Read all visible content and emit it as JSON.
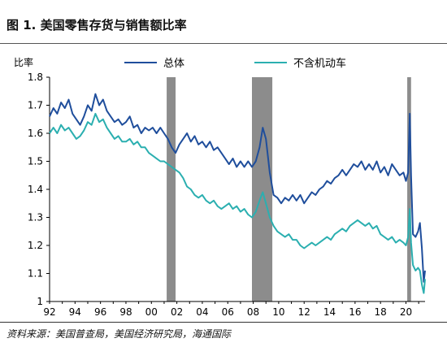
{
  "title": "图 1. 美国零售存货与销售额比率",
  "source": "资料来源：美国普查局，美国经济研究局，海通国际",
  "chart_data": {
    "type": "line",
    "ylabel": "比率",
    "xlim": [
      1992,
      2021.5
    ],
    "ylim": [
      1.0,
      1.8
    ],
    "yticks": [
      "1",
      "1.1",
      "1.2",
      "1.3",
      "1.4",
      "1.5",
      "1.6",
      "1.7",
      "1.8"
    ],
    "xticks": [
      "92",
      "94",
      "96",
      "98",
      "00",
      "02",
      "04",
      "06",
      "08",
      "10",
      "12",
      "14",
      "16",
      "18",
      "20"
    ],
    "legend_position": "top",
    "recessions": [
      [
        2001.2,
        2001.9
      ],
      [
        2007.9,
        2009.5
      ],
      [
        2020.1,
        2020.4
      ]
    ],
    "series": [
      {
        "name": "总体",
        "color": "#1f4e9c",
        "points": [
          [
            1992.0,
            1.66
          ],
          [
            1992.3,
            1.69
          ],
          [
            1992.6,
            1.67
          ],
          [
            1992.9,
            1.71
          ],
          [
            1993.2,
            1.69
          ],
          [
            1993.5,
            1.72
          ],
          [
            1993.8,
            1.67
          ],
          [
            1994.1,
            1.65
          ],
          [
            1994.4,
            1.63
          ],
          [
            1994.7,
            1.66
          ],
          [
            1995.0,
            1.7
          ],
          [
            1995.3,
            1.68
          ],
          [
            1995.6,
            1.74
          ],
          [
            1995.9,
            1.7
          ],
          [
            1996.2,
            1.72
          ],
          [
            1996.5,
            1.68
          ],
          [
            1996.8,
            1.66
          ],
          [
            1997.1,
            1.64
          ],
          [
            1997.4,
            1.65
          ],
          [
            1997.7,
            1.63
          ],
          [
            1998.0,
            1.64
          ],
          [
            1998.3,
            1.66
          ],
          [
            1998.6,
            1.62
          ],
          [
            1998.9,
            1.63
          ],
          [
            1999.2,
            1.6
          ],
          [
            1999.5,
            1.62
          ],
          [
            1999.8,
            1.61
          ],
          [
            2000.1,
            1.62
          ],
          [
            2000.4,
            1.6
          ],
          [
            2000.7,
            1.62
          ],
          [
            2001.0,
            1.6
          ],
          [
            2001.3,
            1.58
          ],
          [
            2001.6,
            1.55
          ],
          [
            2001.9,
            1.53
          ],
          [
            2002.2,
            1.56
          ],
          [
            2002.5,
            1.58
          ],
          [
            2002.8,
            1.6
          ],
          [
            2003.1,
            1.57
          ],
          [
            2003.4,
            1.59
          ],
          [
            2003.7,
            1.56
          ],
          [
            2004.0,
            1.57
          ],
          [
            2004.3,
            1.55
          ],
          [
            2004.6,
            1.57
          ],
          [
            2004.9,
            1.54
          ],
          [
            2005.2,
            1.55
          ],
          [
            2005.5,
            1.53
          ],
          [
            2005.8,
            1.51
          ],
          [
            2006.1,
            1.49
          ],
          [
            2006.4,
            1.51
          ],
          [
            2006.7,
            1.48
          ],
          [
            2007.0,
            1.5
          ],
          [
            2007.3,
            1.48
          ],
          [
            2007.6,
            1.5
          ],
          [
            2007.9,
            1.48
          ],
          [
            2008.2,
            1.5
          ],
          [
            2008.5,
            1.55
          ],
          [
            2008.75,
            1.62
          ],
          [
            2009.0,
            1.58
          ],
          [
            2009.3,
            1.46
          ],
          [
            2009.6,
            1.38
          ],
          [
            2009.9,
            1.37
          ],
          [
            2010.2,
            1.35
          ],
          [
            2010.5,
            1.37
          ],
          [
            2010.8,
            1.36
          ],
          [
            2011.1,
            1.38
          ],
          [
            2011.4,
            1.36
          ],
          [
            2011.7,
            1.38
          ],
          [
            2012.0,
            1.35
          ],
          [
            2012.3,
            1.37
          ],
          [
            2012.6,
            1.39
          ],
          [
            2012.9,
            1.38
          ],
          [
            2013.2,
            1.4
          ],
          [
            2013.5,
            1.41
          ],
          [
            2013.8,
            1.43
          ],
          [
            2014.1,
            1.42
          ],
          [
            2014.4,
            1.44
          ],
          [
            2014.7,
            1.45
          ],
          [
            2015.0,
            1.47
          ],
          [
            2015.3,
            1.45
          ],
          [
            2015.6,
            1.47
          ],
          [
            2015.9,
            1.49
          ],
          [
            2016.2,
            1.48
          ],
          [
            2016.5,
            1.5
          ],
          [
            2016.8,
            1.47
          ],
          [
            2017.1,
            1.49
          ],
          [
            2017.4,
            1.47
          ],
          [
            2017.7,
            1.5
          ],
          [
            2018.0,
            1.46
          ],
          [
            2018.3,
            1.48
          ],
          [
            2018.6,
            1.45
          ],
          [
            2018.9,
            1.49
          ],
          [
            2019.2,
            1.47
          ],
          [
            2019.5,
            1.45
          ],
          [
            2019.8,
            1.46
          ],
          [
            2020.0,
            1.43
          ],
          [
            2020.17,
            1.46
          ],
          [
            2020.3,
            1.67
          ],
          [
            2020.4,
            1.45
          ],
          [
            2020.55,
            1.24
          ],
          [
            2020.75,
            1.23
          ],
          [
            2020.95,
            1.25
          ],
          [
            2021.1,
            1.28
          ],
          [
            2021.25,
            1.19
          ],
          [
            2021.4,
            1.07
          ],
          [
            2021.5,
            1.11
          ]
        ]
      },
      {
        "name": "不含机动车",
        "color": "#2bafb0",
        "points": [
          [
            1992.0,
            1.6
          ],
          [
            1992.3,
            1.62
          ],
          [
            1992.6,
            1.6
          ],
          [
            1992.9,
            1.63
          ],
          [
            1993.2,
            1.61
          ],
          [
            1993.5,
            1.62
          ],
          [
            1993.8,
            1.6
          ],
          [
            1994.1,
            1.58
          ],
          [
            1994.4,
            1.59
          ],
          [
            1994.7,
            1.61
          ],
          [
            1995.0,
            1.64
          ],
          [
            1995.3,
            1.63
          ],
          [
            1995.6,
            1.67
          ],
          [
            1995.9,
            1.64
          ],
          [
            1996.2,
            1.65
          ],
          [
            1996.5,
            1.62
          ],
          [
            1996.8,
            1.6
          ],
          [
            1997.1,
            1.58
          ],
          [
            1997.4,
            1.59
          ],
          [
            1997.7,
            1.57
          ],
          [
            1998.0,
            1.57
          ],
          [
            1998.3,
            1.58
          ],
          [
            1998.6,
            1.56
          ],
          [
            1998.9,
            1.57
          ],
          [
            1999.2,
            1.55
          ],
          [
            1999.5,
            1.55
          ],
          [
            1999.8,
            1.53
          ],
          [
            2000.1,
            1.52
          ],
          [
            2000.4,
            1.51
          ],
          [
            2000.7,
            1.5
          ],
          [
            2001.0,
            1.5
          ],
          [
            2001.3,
            1.49
          ],
          [
            2001.6,
            1.48
          ],
          [
            2001.9,
            1.47
          ],
          [
            2002.2,
            1.46
          ],
          [
            2002.5,
            1.44
          ],
          [
            2002.8,
            1.41
          ],
          [
            2003.1,
            1.4
          ],
          [
            2003.4,
            1.38
          ],
          [
            2003.7,
            1.37
          ],
          [
            2004.0,
            1.38
          ],
          [
            2004.3,
            1.36
          ],
          [
            2004.6,
            1.35
          ],
          [
            2004.9,
            1.36
          ],
          [
            2005.2,
            1.34
          ],
          [
            2005.5,
            1.33
          ],
          [
            2005.8,
            1.34
          ],
          [
            2006.1,
            1.35
          ],
          [
            2006.4,
            1.33
          ],
          [
            2006.7,
            1.34
          ],
          [
            2007.0,
            1.32
          ],
          [
            2007.3,
            1.33
          ],
          [
            2007.6,
            1.31
          ],
          [
            2007.9,
            1.3
          ],
          [
            2008.2,
            1.32
          ],
          [
            2008.5,
            1.36
          ],
          [
            2008.75,
            1.39
          ],
          [
            2009.0,
            1.35
          ],
          [
            2009.3,
            1.3
          ],
          [
            2009.6,
            1.27
          ],
          [
            2009.9,
            1.25
          ],
          [
            2010.2,
            1.24
          ],
          [
            2010.5,
            1.23
          ],
          [
            2010.8,
            1.24
          ],
          [
            2011.1,
            1.22
          ],
          [
            2011.4,
            1.22
          ],
          [
            2011.7,
            1.2
          ],
          [
            2012.0,
            1.19
          ],
          [
            2012.3,
            1.2
          ],
          [
            2012.6,
            1.21
          ],
          [
            2012.9,
            1.2
          ],
          [
            2013.2,
            1.21
          ],
          [
            2013.5,
            1.22
          ],
          [
            2013.8,
            1.23
          ],
          [
            2014.1,
            1.22
          ],
          [
            2014.4,
            1.24
          ],
          [
            2014.7,
            1.25
          ],
          [
            2015.0,
            1.26
          ],
          [
            2015.3,
            1.25
          ],
          [
            2015.6,
            1.27
          ],
          [
            2015.9,
            1.28
          ],
          [
            2016.2,
            1.29
          ],
          [
            2016.5,
            1.28
          ],
          [
            2016.8,
            1.27
          ],
          [
            2017.1,
            1.28
          ],
          [
            2017.4,
            1.26
          ],
          [
            2017.7,
            1.27
          ],
          [
            2018.0,
            1.24
          ],
          [
            2018.3,
            1.23
          ],
          [
            2018.6,
            1.22
          ],
          [
            2018.9,
            1.23
          ],
          [
            2019.2,
            1.21
          ],
          [
            2019.5,
            1.22
          ],
          [
            2019.8,
            1.21
          ],
          [
            2020.0,
            1.2
          ],
          [
            2020.17,
            1.23
          ],
          [
            2020.3,
            1.33
          ],
          [
            2020.4,
            1.21
          ],
          [
            2020.55,
            1.13
          ],
          [
            2020.75,
            1.11
          ],
          [
            2020.95,
            1.12
          ],
          [
            2021.1,
            1.11
          ],
          [
            2021.25,
            1.06
          ],
          [
            2021.4,
            1.03
          ],
          [
            2021.5,
            1.08
          ]
        ]
      }
    ]
  }
}
